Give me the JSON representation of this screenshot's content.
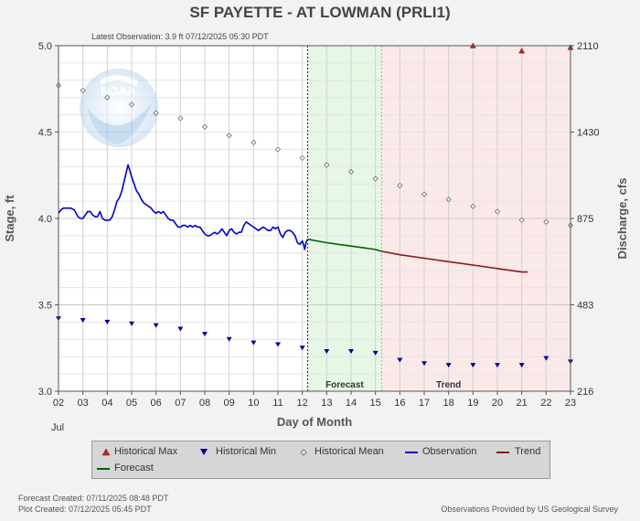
{
  "title": "SF PAYETTE - AT LOWMAN  (PRLI1)",
  "subtitle": "Latest Observation: 3.9 ft 07/12/2025 05:30 PDT",
  "footer": {
    "forecast_created": "Forecast Created: 07/11/2025 08:48 PDT",
    "plot_created": "Plot Created: 07/12/2025 05:45 PDT",
    "provider": "Observations Provided by US Geological Survey"
  },
  "legend": {
    "historical_max": "Historical Max",
    "historical_min": "Historical Min",
    "historical_mean": "Historical Mean",
    "observation": "Observation",
    "trend": "Trend",
    "forecast": "Forecast"
  },
  "colors": {
    "observation": "#0000cc",
    "forecast": "#006400",
    "trend": "#8b1a1a",
    "max_marker": "#cc2222",
    "min_marker": "#000099",
    "forecast_band": "#e6f7e6",
    "trend_band": "#fbe9e9"
  },
  "chart_data": {
    "type": "line",
    "xlabel": "Day of Month",
    "ylabel": "Stage, ft",
    "y2label": "Discharge, cfs",
    "month_label": "Jul",
    "x_ticks": [
      "02",
      "03",
      "04",
      "05",
      "06",
      "07",
      "08",
      "09",
      "10",
      "11",
      "12",
      "13",
      "14",
      "15",
      "16",
      "17",
      "18",
      "19",
      "20",
      "21",
      "22",
      "23"
    ],
    "xlim": [
      2,
      23
    ],
    "ylim": [
      3.0,
      5.0
    ],
    "y_ticks": [
      "3.0",
      "3.5",
      "4.0",
      "4.5",
      "5.0"
    ],
    "y2_ticks": [
      {
        "stage": 3.0,
        "label": "216"
      },
      {
        "stage": 3.5,
        "label": "483"
      },
      {
        "stage": 4.0,
        "label": "875"
      },
      {
        "stage": 4.5,
        "label": "1430"
      },
      {
        "stage": 5.0,
        "label": "2110"
      }
    ],
    "now_day": 12.22,
    "forecast_region": {
      "label": "Forecast",
      "from": 12.22,
      "to": 15.25
    },
    "trend_region": {
      "label": "Trend",
      "from": 15.25,
      "to": 23
    },
    "series": [
      {
        "name": "Observation",
        "x": [
          2.0,
          2.1,
          2.2,
          2.35,
          2.5,
          2.65,
          2.8,
          2.9,
          3.0,
          3.1,
          3.2,
          3.3,
          3.4,
          3.5,
          3.6,
          3.7,
          3.8,
          3.9,
          4.0,
          4.1,
          4.2,
          4.3,
          4.4,
          4.5,
          4.6,
          4.7,
          4.8,
          4.85,
          4.9,
          5.0,
          5.1,
          5.2,
          5.3,
          5.4,
          5.5,
          5.6,
          5.7,
          5.8,
          5.9,
          6.0,
          6.1,
          6.2,
          6.3,
          6.4,
          6.5,
          6.6,
          6.7,
          6.8,
          6.9,
          7.0,
          7.1,
          7.2,
          7.3,
          7.4,
          7.5,
          7.6,
          7.7,
          7.8,
          7.9,
          8.0,
          8.1,
          8.2,
          8.3,
          8.4,
          8.5,
          8.6,
          8.7,
          8.8,
          8.9,
          9.0,
          9.1,
          9.2,
          9.3,
          9.4,
          9.5,
          9.6,
          9.7,
          9.8,
          9.9,
          10.0,
          10.1,
          10.2,
          10.3,
          10.4,
          10.5,
          10.6,
          10.7,
          10.8,
          10.9,
          11.0,
          11.1,
          11.2,
          11.3,
          11.4,
          11.5,
          11.6,
          11.7,
          11.8,
          11.9,
          12.0,
          12.05,
          12.1,
          12.15,
          12.22
        ],
        "y": [
          4.03,
          4.05,
          4.06,
          4.06,
          4.06,
          4.05,
          4.01,
          4.0,
          4.0,
          4.02,
          4.04,
          4.04,
          4.02,
          4.01,
          4.01,
          4.04,
          4.0,
          3.99,
          3.99,
          3.99,
          4.01,
          4.05,
          4.1,
          4.12,
          4.16,
          4.22,
          4.28,
          4.31,
          4.29,
          4.24,
          4.2,
          4.16,
          4.14,
          4.11,
          4.09,
          4.08,
          4.07,
          4.06,
          4.04,
          4.03,
          4.04,
          4.03,
          4.04,
          4.02,
          4.0,
          3.99,
          3.99,
          3.97,
          3.95,
          3.95,
          3.96,
          3.96,
          3.95,
          3.96,
          3.95,
          3.96,
          3.95,
          3.95,
          3.93,
          3.91,
          3.9,
          3.9,
          3.91,
          3.92,
          3.91,
          3.92,
          3.94,
          3.92,
          3.9,
          3.93,
          3.94,
          3.92,
          3.91,
          3.92,
          3.92,
          3.96,
          3.98,
          3.97,
          3.96,
          3.95,
          3.94,
          3.93,
          3.94,
          3.95,
          3.94,
          3.93,
          3.93,
          3.95,
          3.94,
          3.95,
          3.91,
          3.89,
          3.92,
          3.93,
          3.93,
          3.92,
          3.9,
          3.86,
          3.85,
          3.87,
          3.85,
          3.82,
          3.86,
          3.88
        ]
      },
      {
        "name": "Forecast",
        "x": [
          12.22,
          12.6,
          13.0,
          13.5,
          14.0,
          14.5,
          15.0,
          15.25
        ],
        "y": [
          3.88,
          3.87,
          3.86,
          3.85,
          3.84,
          3.83,
          3.82,
          3.81
        ]
      },
      {
        "name": "Trend",
        "x": [
          15.25,
          16,
          17,
          18,
          19,
          20,
          21,
          21.25
        ],
        "y": [
          3.81,
          3.79,
          3.77,
          3.75,
          3.73,
          3.71,
          3.69,
          3.69
        ]
      },
      {
        "name": "Historical Mean",
        "x": [
          2,
          3,
          4,
          5,
          6,
          7,
          8,
          9,
          10,
          11,
          12,
          13,
          14,
          15,
          16,
          17,
          18,
          19,
          20,
          21,
          22,
          23
        ],
        "y": [
          4.77,
          4.74,
          4.7,
          4.66,
          4.61,
          4.58,
          4.53,
          4.48,
          4.44,
          4.4,
          4.35,
          4.31,
          4.27,
          4.23,
          4.19,
          4.14,
          4.11,
          4.07,
          4.04,
          3.99,
          3.98,
          3.96
        ]
      },
      {
        "name": "Historical Min",
        "x": [
          2,
          3,
          4,
          5,
          6,
          7,
          8,
          9,
          10,
          11,
          12,
          13,
          14,
          15,
          16,
          17,
          18,
          19,
          20,
          21,
          22,
          23
        ],
        "y": [
          3.42,
          3.41,
          3.4,
          3.39,
          3.38,
          3.36,
          3.33,
          3.3,
          3.28,
          3.27,
          3.25,
          3.23,
          3.23,
          3.22,
          3.18,
          3.16,
          3.15,
          3.15,
          3.15,
          3.15,
          3.19,
          3.17
        ]
      },
      {
        "name": "Historical Max",
        "x": [
          19,
          21,
          23
        ],
        "y": [
          5.0,
          4.97,
          4.99
        ]
      }
    ]
  }
}
